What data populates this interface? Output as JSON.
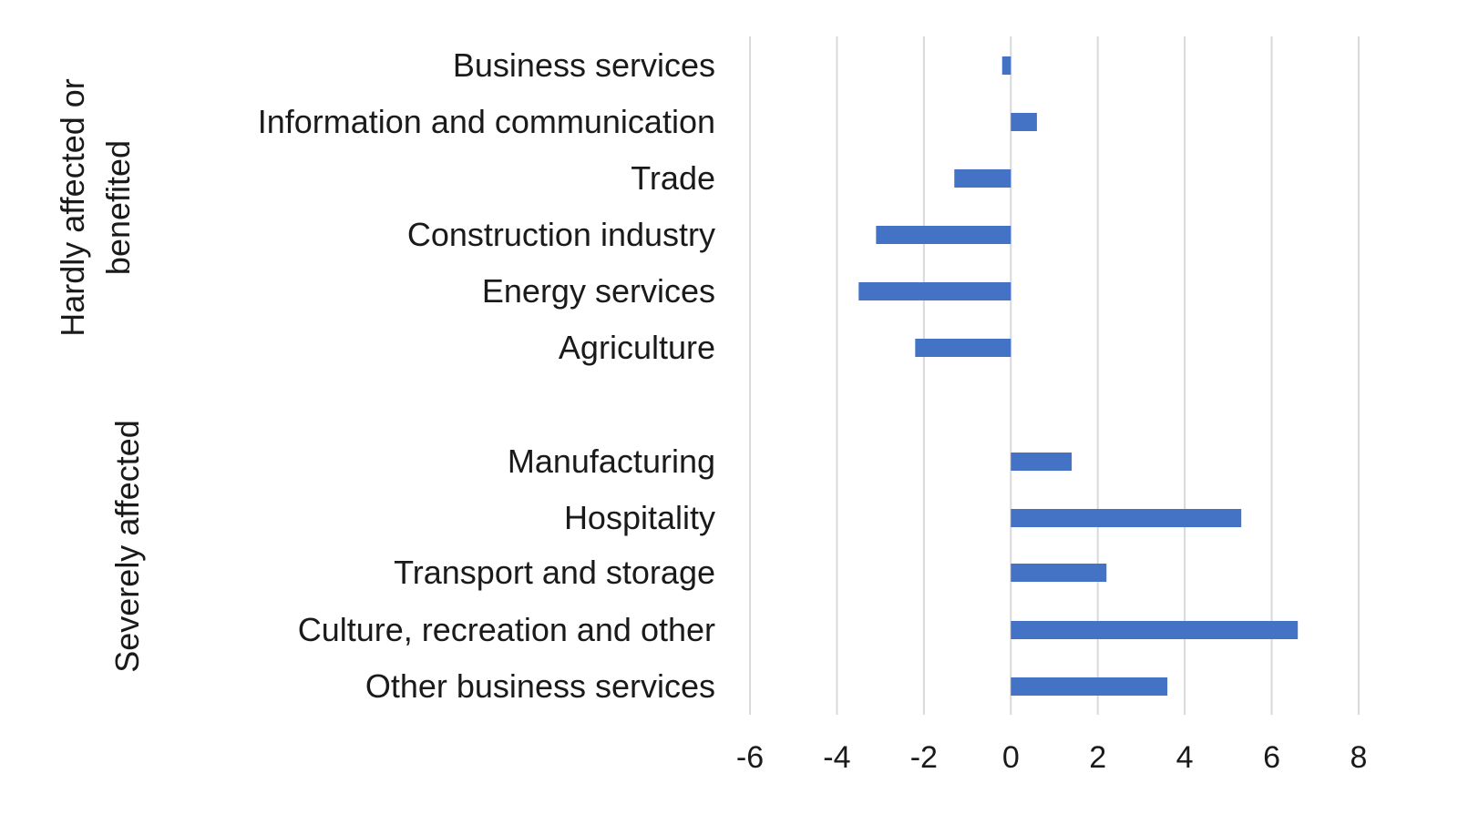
{
  "chart_data": {
    "type": "bar",
    "orientation": "horizontal",
    "title": "",
    "xlabel": "",
    "ylabel": "",
    "xlim": [
      -6,
      8
    ],
    "x_ticks": [
      -6,
      -4,
      -2,
      0,
      2,
      4,
      6,
      8
    ],
    "grid": "vertical",
    "legend": "none",
    "bar_color": "#4472C4",
    "grid_color": "#d9d9d9",
    "groups": [
      {
        "label": "Hardly affected or benefited",
        "label_lines": [
          "Hardly affected or",
          "benefited"
        ],
        "categories": [
          "Business services",
          "Information and communication",
          "Trade",
          "Construction industry",
          "Energy services",
          "Agriculture"
        ],
        "values": [
          -0.2,
          0.6,
          -1.3,
          -3.1,
          -3.5,
          -2.2
        ]
      },
      {
        "label": "Severely affected",
        "label_lines": [
          "Severely affected"
        ],
        "categories": [
          "Manufacturing",
          "Hospitality",
          "Transport and storage",
          "Culture, recreation and other",
          "Other business services"
        ],
        "values": [
          1.4,
          5.3,
          2.2,
          6.6,
          3.6
        ]
      }
    ]
  }
}
